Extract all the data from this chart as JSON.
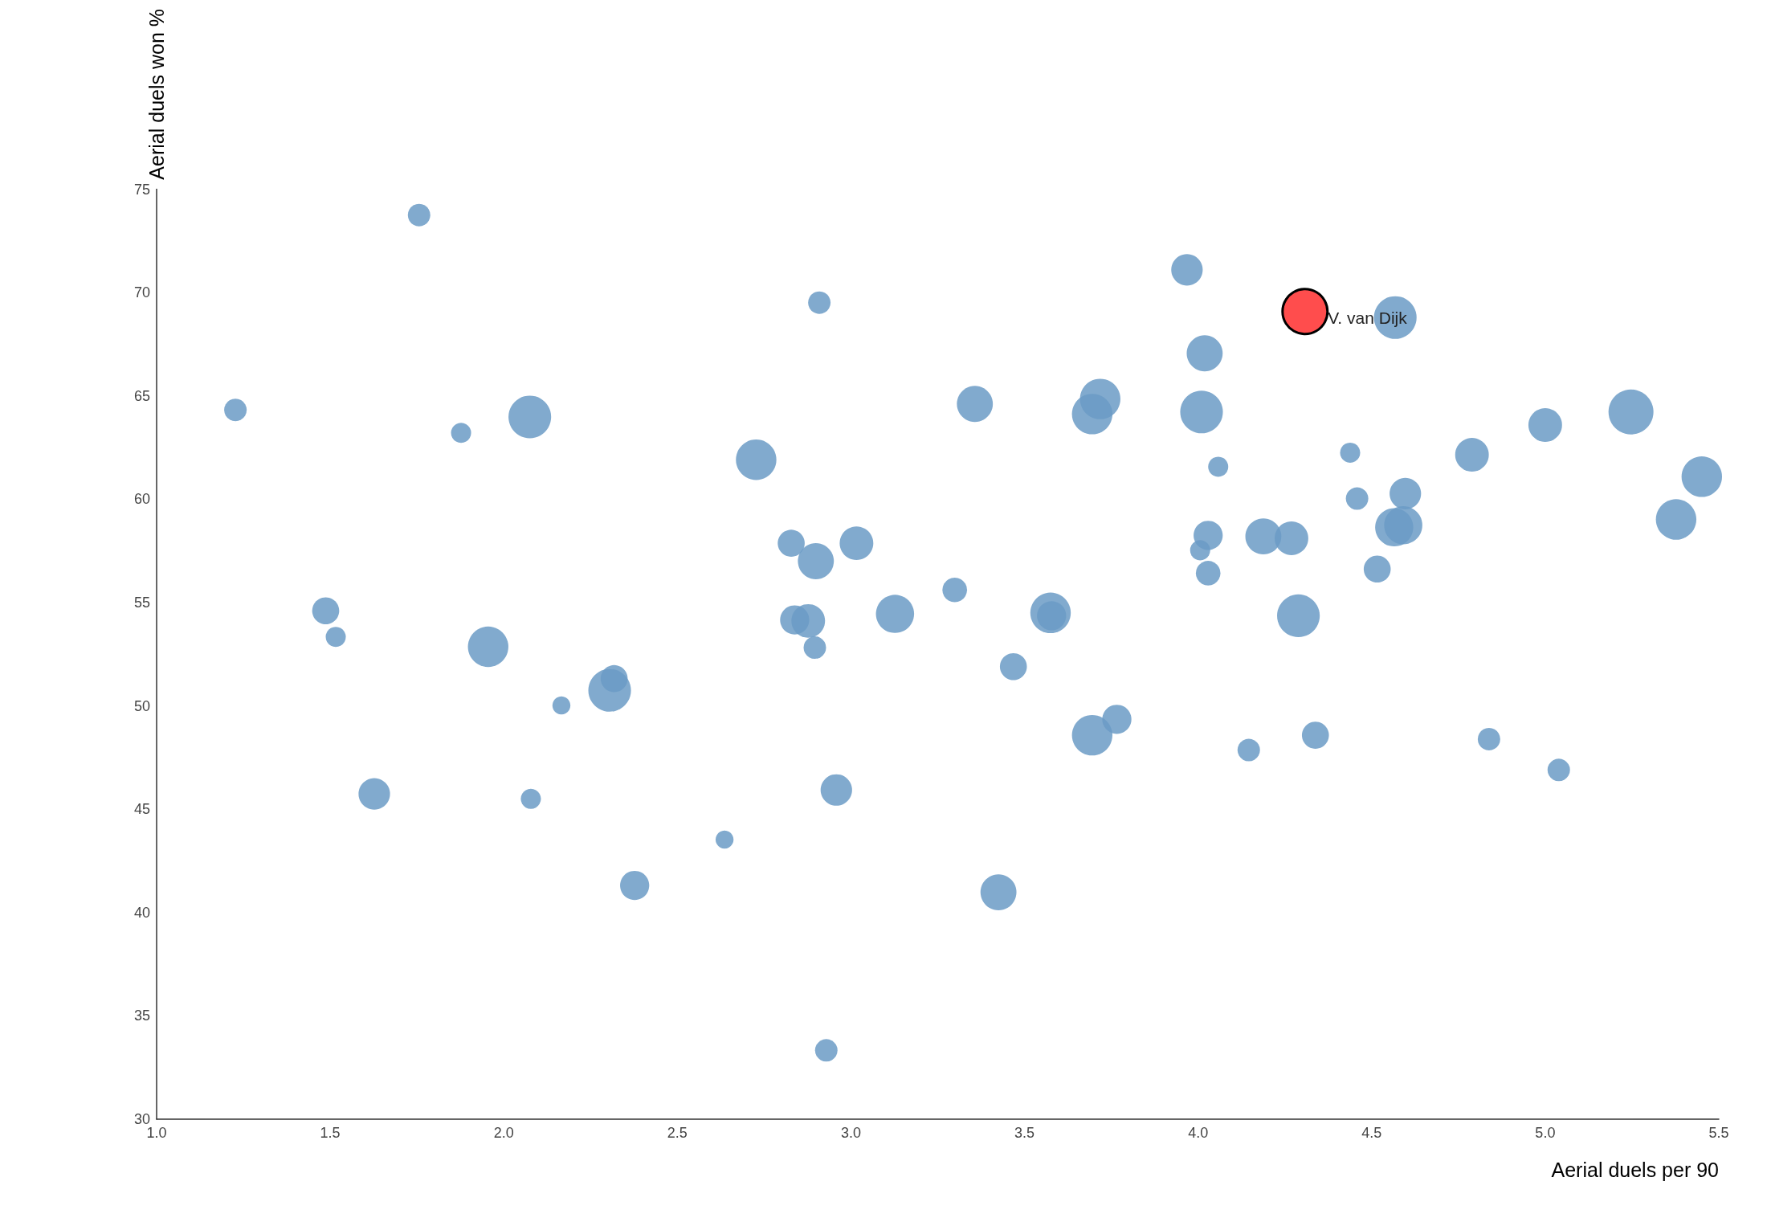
{
  "chart_data": {
    "type": "bubble",
    "xlabel": "Aerial duels per 90",
    "ylabel": "Aerial duels won %",
    "xlim": [
      1,
      5.5
    ],
    "xticks": [
      {
        "value": 1,
        "label": "1.0"
      },
      {
        "value": 1.5,
        "label": "1.5"
      },
      {
        "value": 2,
        "label": "2.0"
      },
      {
        "value": 2.5,
        "label": "2.5"
      },
      {
        "value": 3,
        "label": "3.0"
      },
      {
        "value": 3.5,
        "label": "3.5"
      },
      {
        "value": 4,
        "label": "4.0"
      },
      {
        "value": 4.5,
        "label": "4.5"
      },
      {
        "value": 5,
        "label": "5.0"
      },
      {
        "value": 5.5,
        "label": "5.5"
      }
    ],
    "ylim": [
      30,
      75
    ],
    "yticks": [
      30,
      35,
      40,
      45,
      50,
      55,
      60,
      65,
      70,
      75
    ],
    "grid": false,
    "legend": false,
    "series": [
      {
        "color": "#6b9bc6",
        "x": [
          1.756,
          1.227,
          1.877,
          2.075,
          2.909,
          2.727,
          3.968,
          4.019,
          3.357,
          3.718,
          3.695,
          4.01,
          4.568,
          4.438,
          4.058,
          4.458,
          4.597,
          4.789,
          5.0,
          5.247,
          5.451,
          5.377,
          4.565,
          4.591,
          4.029,
          4.006,
          4.029,
          4.188,
          4.269,
          4.516,
          4.289,
          2.828,
          3.016,
          2.899,
          3.299,
          3.127,
          2.838,
          2.877,
          2.896,
          3.575,
          3.578,
          3.468,
          1.487,
          1.516,
          1.955,
          2.305,
          2.318,
          2.166,
          3.695,
          3.766,
          4.146,
          4.338,
          4.838,
          5.039,
          1.627,
          2.078,
          2.958,
          2.636,
          2.377,
          3.425,
          2.929
        ],
        "values": [
          73.75,
          64.32,
          63.21,
          63.98,
          69.51,
          61.91,
          71.1,
          67.06,
          64.61,
          64.85,
          64.12,
          64.22,
          68.79,
          62.25,
          61.57,
          60.03,
          60.27,
          62.15,
          63.59,
          64.22,
          61.09,
          59.02,
          58.64,
          58.74,
          58.25,
          57.53,
          56.42,
          58.2,
          58.11,
          56.62,
          54.36,
          57.87,
          57.87,
          57.0,
          55.61,
          54.45,
          54.16,
          54.11,
          52.82,
          54.5,
          54.36,
          51.9,
          54.6,
          53.34,
          52.86,
          50.75,
          51.32,
          50.02,
          48.58,
          49.35,
          47.86,
          48.58,
          48.39,
          46.9,
          45.74,
          45.5,
          45.93,
          43.53,
          41.31,
          40.98,
          33.33
        ],
        "sizes": [
          0.25,
          0.25,
          0.2,
          0.9,
          0.25,
          0.81,
          0.49,
          0.64,
          0.64,
          0.81,
          0.81,
          0.9,
          0.9,
          0.2,
          0.2,
          0.25,
          0.49,
          0.56,
          0.56,
          1,
          0.81,
          0.81,
          0.72,
          0.72,
          0.42,
          0.2,
          0.3,
          0.64,
          0.56,
          0.36,
          0.9,
          0.36,
          0.56,
          0.64,
          0.3,
          0.72,
          0.42,
          0.56,
          0.25,
          0.81,
          0.42,
          0.36,
          0.36,
          0.2,
          0.81,
          0.9,
          0.36,
          0.16,
          0.81,
          0.42,
          0.25,
          0.36,
          0.25,
          0.25,
          0.49,
          0.2,
          0.49,
          0.16,
          0.42,
          0.64,
          0.25
        ]
      },
      {
        "name": "V. van Dijk",
        "color": "#ff4d4d",
        "x": [
          4.308
        ],
        "values": [
          69.08
        ],
        "sizes": [
          1
        ]
      }
    ]
  }
}
